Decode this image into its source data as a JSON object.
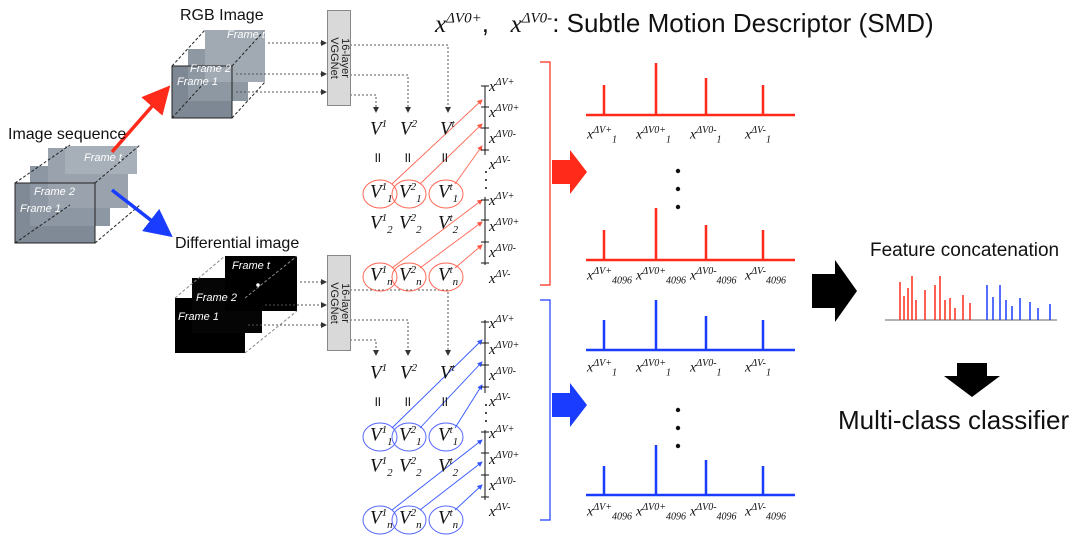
{
  "title": {
    "x_plus_base": "x",
    "x_plus_sup": "ΔV0+",
    "sep": ",",
    "x_minus_base": "x",
    "x_minus_sup": "ΔV0-",
    "text": ": Subtle Motion Descriptor (SMD)"
  },
  "labels": {
    "image_sequence": "Image sequence",
    "rgb_image": "RGB Image",
    "differential_image": "Differential image",
    "feature_concatenation": "Feature concatenation",
    "multi_class_classifier": "Multi-class classifier"
  },
  "frames": {
    "frame_t": "Frame t",
    "frame_2": "Frame 2",
    "frame_1": "Frame 1"
  },
  "vgg": {
    "line1": "16-layer",
    "line2": "VGGNet"
  },
  "v_symbol": "V",
  "v_sups": [
    "1",
    "2",
    "t"
  ],
  "v_subs": [
    "1",
    "2",
    "n"
  ],
  "x_base": "x",
  "x_sups": [
    "ΔV+",
    "ΔV0+",
    "ΔV0-",
    "ΔV-"
  ],
  "bar_subs": [
    "1",
    "4096"
  ],
  "colors": {
    "rgb": "#ff2a1a",
    "diff": "#1a3cff",
    "black": "#000000"
  }
}
